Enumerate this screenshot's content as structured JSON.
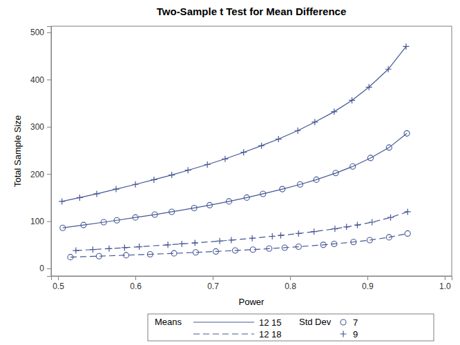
{
  "chart_data": {
    "type": "line",
    "title": "Two-Sample t Test for Mean Difference",
    "x_label": "Power",
    "y_label": "Total Sample Size",
    "xlim": [
      0.491,
      1.009
    ],
    "ylim": [
      -16,
      513
    ],
    "xticks": [
      0.5,
      0.6,
      0.7,
      0.8,
      0.9,
      {
        "value": 1.0,
        "label": "1.0"
      }
    ],
    "yticks": [
      0,
      100,
      200,
      300,
      400,
      500
    ],
    "grid": false,
    "legend": "bottom",
    "legend_groups": [
      {
        "title": "Means",
        "entries": [
          {
            "label": "12 15",
            "line_style": "solid"
          },
          {
            "label": "12 18",
            "line_style": "dashed"
          }
        ]
      },
      {
        "title": "Std Dev",
        "entries": [
          {
            "label": "7",
            "marker": "circle"
          },
          {
            "label": "9",
            "marker": "plus"
          }
        ]
      }
    ],
    "series": [
      {
        "color": "#445694",
        "line_style": "solid",
        "marker": "plus",
        "x": [
          0.505,
          0.528,
          0.55,
          0.575,
          0.6,
          0.624,
          0.647,
          0.668,
          0.693,
          0.716,
          0.74,
          0.763,
          0.785,
          0.81,
          0.832,
          0.857,
          0.88,
          0.902,
          0.927,
          0.95
        ],
        "values": [
          142,
          150,
          158,
          168,
          178,
          188,
          198,
          208,
          220,
          232,
          246,
          260,
          274,
          292,
          310,
          332,
          356,
          384,
          422,
          470
        ]
      },
      {
        "color": "#445694",
        "line_style": "solid",
        "marker": "circle",
        "x": [
          0.506,
          0.533,
          0.559,
          0.576,
          0.6,
          0.625,
          0.647,
          0.676,
          0.696,
          0.721,
          0.744,
          0.765,
          0.79,
          0.813,
          0.834,
          0.859,
          0.881,
          0.904,
          0.928,
          0.951
        ],
        "values": [
          86,
          92,
          98,
          102,
          108,
          114,
          120,
          128,
          134,
          142,
          150,
          158,
          168,
          178,
          188,
          202,
          216,
          234,
          256,
          286
        ]
      },
      {
        "color": "#445694",
        "line_style": "dashed",
        "marker": "plus",
        "x": [
          0.523,
          0.545,
          0.566,
          0.586,
          0.605,
          0.642,
          0.66,
          0.677,
          0.709,
          0.724,
          0.751,
          0.777,
          0.788,
          0.811,
          0.831,
          0.858,
          0.873,
          0.887,
          0.906,
          0.93,
          0.952
        ],
        "values": [
          38,
          40,
          42,
          44,
          46,
          50,
          52,
          54,
          58,
          60,
          64,
          68,
          70,
          74,
          78,
          84,
          88,
          92,
          98,
          108,
          120
        ]
      },
      {
        "color": "#445694",
        "line_style": "dashed",
        "marker": "circle",
        "x": [
          0.516,
          0.553,
          0.588,
          0.619,
          0.65,
          0.678,
          0.704,
          0.729,
          0.752,
          0.773,
          0.793,
          0.811,
          0.843,
          0.857,
          0.882,
          0.903,
          0.928,
          0.952
        ],
        "values": [
          24,
          26,
          28,
          30,
          32,
          34,
          36,
          38,
          40,
          42,
          44,
          46,
          50,
          52,
          56,
          60,
          66,
          74
        ]
      }
    ]
  }
}
